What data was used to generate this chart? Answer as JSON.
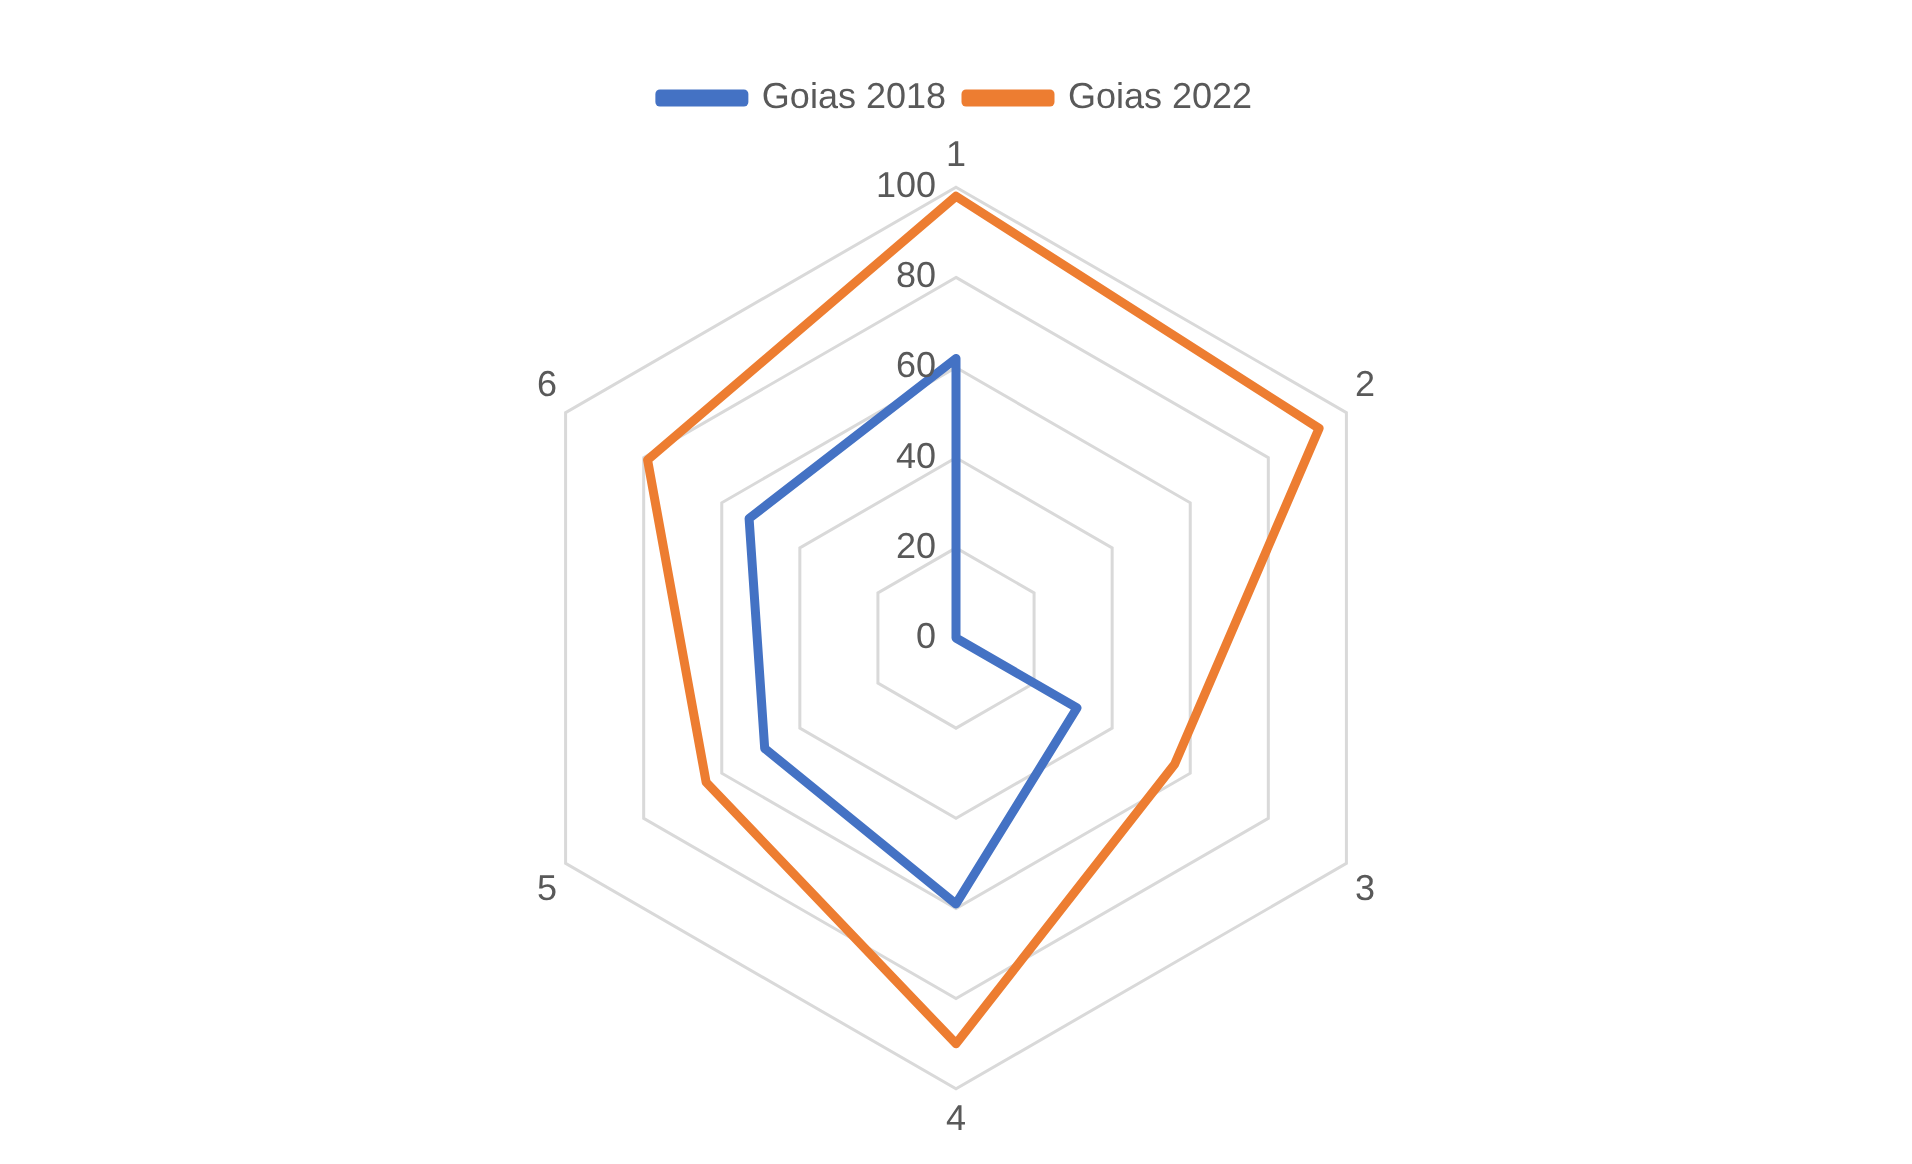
{
  "chart_data": {
    "type": "radar",
    "categories": [
      "1",
      "2",
      "3",
      "4",
      "5",
      "6"
    ],
    "series": [
      {
        "name": "Goias 2018",
        "color": "#4472c4",
        "values": [
          62,
          0,
          31,
          59,
          49,
          53
        ]
      },
      {
        "name": "Goias 2022",
        "color": "#ed7d31",
        "values": [
          98,
          93,
          56,
          90,
          64,
          79
        ]
      }
    ],
    "ylim": [
      0,
      100
    ],
    "yticks": [
      0,
      20,
      40,
      60,
      80,
      100
    ],
    "grid": true,
    "legend": "top",
    "marker": "none",
    "line_style": "solid"
  }
}
